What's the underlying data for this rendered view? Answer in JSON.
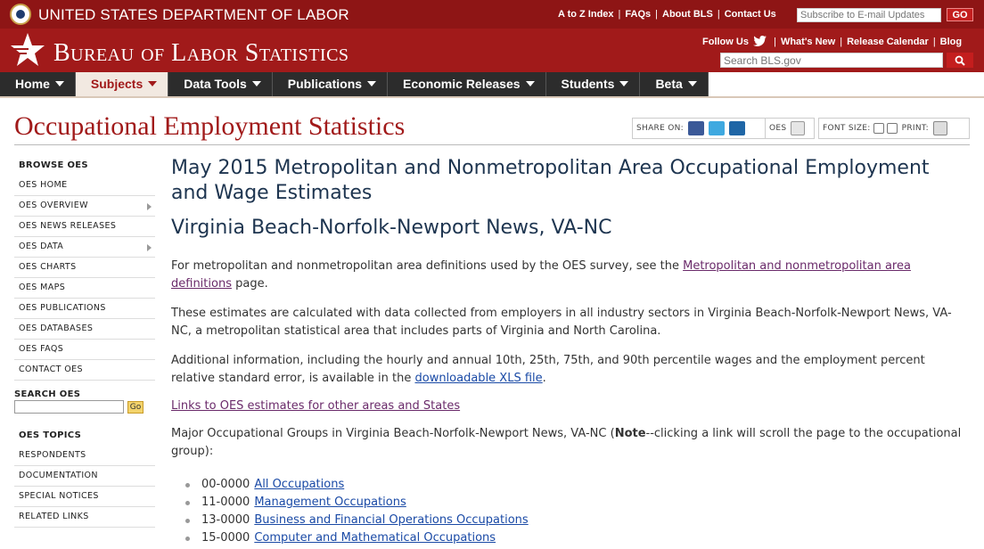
{
  "header": {
    "dol_title": "UNITED STATES DEPARTMENT OF LABOR",
    "top_links": [
      "A to Z Index",
      "FAQs",
      "About BLS",
      "Contact Us"
    ],
    "email_placeholder": "Subscribe to E-mail Updates",
    "email_go": "GO",
    "bls_title": "Bureau of Labor Statistics",
    "follow_label": "Follow Us",
    "secondary_links": [
      "What's New",
      "Release Calendar",
      "Blog"
    ],
    "search_placeholder": "Search BLS.gov"
  },
  "nav": {
    "items": [
      "Home",
      "Subjects",
      "Data Tools",
      "Publications",
      "Economic Releases",
      "Students",
      "Beta"
    ],
    "active": "Subjects"
  },
  "page": {
    "title": "Occupational Employment Statistics",
    "share_label": "SHARE ON:",
    "oes_label": "OES",
    "font_size_label": "FONT SIZE:",
    "print_label": "PRINT:"
  },
  "sidebar": {
    "browse_heading": "BROWSE OES",
    "browse_items": [
      "OES HOME",
      "OES OVERVIEW",
      "OES NEWS RELEASES",
      "OES DATA",
      "OES CHARTS",
      "OES MAPS",
      "OES PUBLICATIONS",
      "OES DATABASES",
      "OES FAQS",
      "CONTACT OES"
    ],
    "search_heading": "SEARCH OES",
    "search_go": "Go",
    "topics_heading": "OES TOPICS",
    "topic_items": [
      "RESPONDENTS",
      "DOCUMENTATION",
      "SPECIAL NOTICES",
      "RELATED LINKS"
    ]
  },
  "main": {
    "heading": "May 2015 Metropolitan and Nonmetropolitan Area Occupational Employment and Wage Estimates",
    "subheading": "Virginia Beach-Norfolk-Newport News, VA-NC",
    "p1_before": "For metropolitan and nonmetropolitan area definitions used by the OES survey, see the ",
    "p1_link": "Metropolitan and nonmetropolitan area definitions",
    "p1_after": " page.",
    "p2": "These estimates are calculated with data collected from employers in all industry sectors in Virginia Beach-Norfolk-Newport News, VA-NC, a metropolitan statistical area that includes parts of Virginia and North Carolina.",
    "p3_before": "Additional information, including the hourly and annual 10th, 25th, 75th, and 90th percentile wages and the employment percent relative standard error, is available in the ",
    "p3_link": "downloadable XLS file",
    "p3_after": ".",
    "other_areas_link": "Links to OES estimates for other areas and States",
    "p4_before": "Major Occupational Groups in Virginia Beach-Norfolk-Newport News, VA-NC (",
    "p4_bold": "Note",
    "p4_after": "--clicking a link will scroll the page to the occupational group):",
    "occupations": [
      {
        "code": "00-0000",
        "label": "All Occupations"
      },
      {
        "code": "11-0000",
        "label": "Management Occupations"
      },
      {
        "code": "13-0000",
        "label": "Business and Financial Operations Occupations"
      },
      {
        "code": "15-0000",
        "label": "Computer and Mathematical Occupations"
      }
    ]
  },
  "colors": {
    "top_bar": "#8e1515",
    "banner": "#a11a1a",
    "nav_dark": "#2c2c2c",
    "title_red": "#a11a1a",
    "heading_blue": "#1e3550",
    "link_blue": "#1a4aa6"
  },
  "icons": [
    "dol-seal-icon",
    "bls-star-icon",
    "twitter-icon",
    "search-icon",
    "facebook-icon",
    "twitter-share-icon",
    "linkedin-icon",
    "oes-print-icon",
    "font-decrease-icon",
    "font-increase-icon",
    "printer-icon"
  ]
}
